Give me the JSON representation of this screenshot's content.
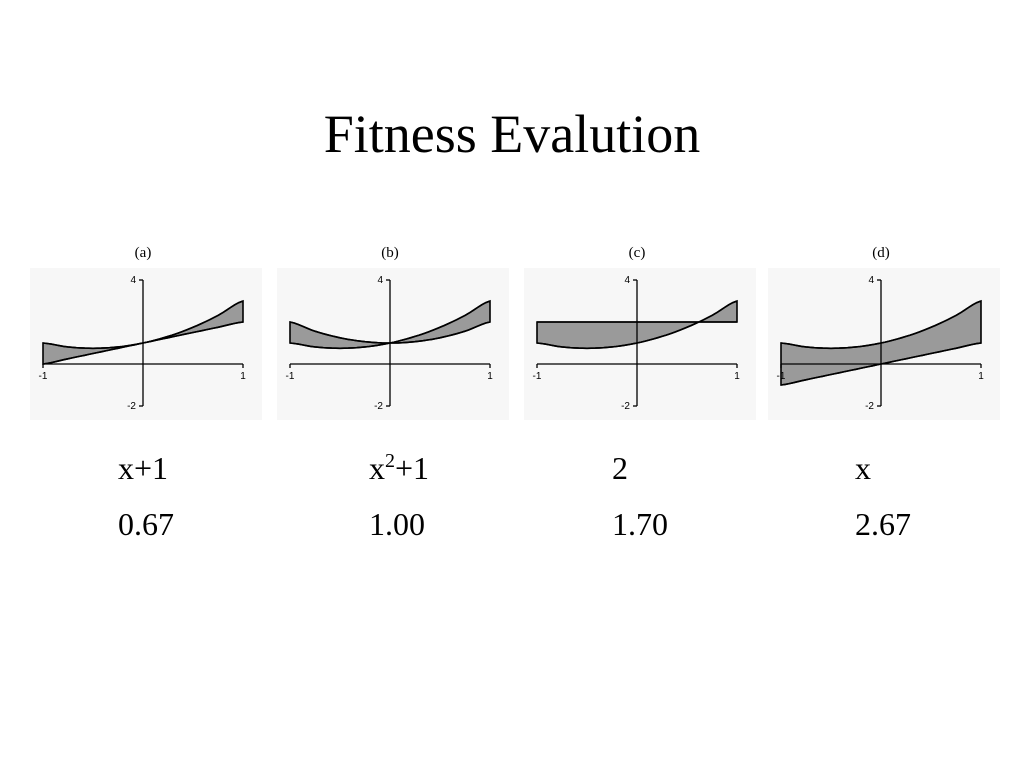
{
  "slide": {
    "title": "Fitness Evalution"
  },
  "chart_data": [
    {
      "type": "area",
      "panel_label": "(a)",
      "expression": "x+1",
      "expression_base": "x",
      "expression_sup": "",
      "expression_rest": "+1",
      "fitness": "0.67",
      "target": "x^2+x+1",
      "xlim": [
        -1,
        1
      ],
      "ylim": [
        -2,
        4
      ],
      "x_ticks": [
        "-1",
        "1"
      ],
      "y_ticks": [
        "4",
        "-2"
      ],
      "x": [
        -1,
        -0.75,
        -0.5,
        -0.25,
        0,
        0.25,
        0.5,
        0.75,
        1
      ],
      "series": [
        {
          "values": [
            1,
            0.8125,
            0.75,
            0.8125,
            1,
            1.3125,
            1.75,
            2.3125,
            3
          ]
        },
        {
          "values": [
            0,
            0.25,
            0.5,
            0.75,
            1,
            1.25,
            1.5,
            1.75,
            2
          ]
        }
      ]
    },
    {
      "type": "area",
      "panel_label": "(b)",
      "expression": "x2+1",
      "expression_base": "x",
      "expression_sup": "2",
      "expression_rest": "+1",
      "fitness": "1.00",
      "target": "x^2+x+1",
      "xlim": [
        -1,
        1
      ],
      "ylim": [
        -2,
        4
      ],
      "x_ticks": [
        "-1",
        "1"
      ],
      "y_ticks": [
        "4",
        "-2"
      ],
      "x": [
        -1,
        -0.75,
        -0.5,
        -0.25,
        0,
        0.25,
        0.5,
        0.75,
        1
      ],
      "series": [
        {
          "values": [
            1,
            0.8125,
            0.75,
            0.8125,
            1,
            1.3125,
            1.75,
            2.3125,
            3
          ]
        },
        {
          "values": [
            2,
            1.5625,
            1.25,
            1.0625,
            1,
            1.0625,
            1.25,
            1.5625,
            2
          ]
        }
      ]
    },
    {
      "type": "area",
      "panel_label": "(c)",
      "expression": "2",
      "expression_base": "2",
      "expression_sup": "",
      "expression_rest": "",
      "fitness": "1.70",
      "target": "x^2+x+1",
      "xlim": [
        -1,
        1
      ],
      "ylim": [
        -2,
        4
      ],
      "x_ticks": [
        "-1",
        "1"
      ],
      "y_ticks": [
        "4",
        "-2"
      ],
      "x": [
        -1,
        -0.75,
        -0.5,
        -0.25,
        0,
        0.25,
        0.5,
        0.75,
        1
      ],
      "series": [
        {
          "values": [
            1,
            0.8125,
            0.75,
            0.8125,
            1,
            1.3125,
            1.75,
            2.3125,
            3
          ]
        },
        {
          "values": [
            2,
            2,
            2,
            2,
            2,
            2,
            2,
            2,
            2
          ]
        }
      ]
    },
    {
      "type": "area",
      "panel_label": "(d)",
      "expression": "x",
      "expression_base": "x",
      "expression_sup": "",
      "expression_rest": "",
      "fitness": "2.67",
      "target": "x^2+x+1",
      "xlim": [
        -1,
        1
      ],
      "ylim": [
        -2,
        4
      ],
      "x_ticks": [
        "-1",
        "1"
      ],
      "y_ticks": [
        "4",
        "-2"
      ],
      "x": [
        -1,
        -0.75,
        -0.5,
        -0.25,
        0,
        0.25,
        0.5,
        0.75,
        1
      ],
      "series": [
        {
          "values": [
            1,
            0.8125,
            0.75,
            0.8125,
            1,
            1.3125,
            1.75,
            2.3125,
            3
          ]
        },
        {
          "values": [
            -1,
            -0.75,
            -0.5,
            -0.25,
            0,
            0.25,
            0.5,
            0.75,
            1
          ]
        }
      ]
    }
  ]
}
